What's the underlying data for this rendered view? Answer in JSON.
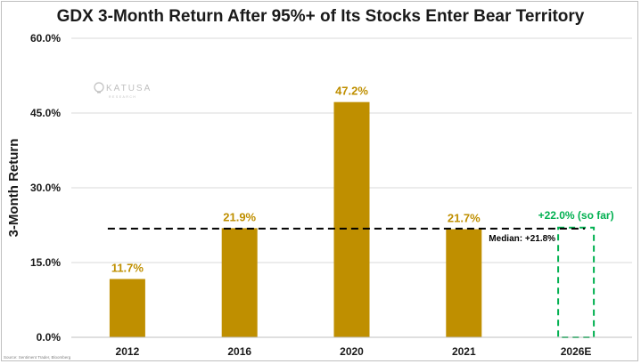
{
  "chart_data": {
    "type": "bar",
    "title": "GDX 3-Month Return After 95%+ of Its Stocks Enter Bear Territory",
    "ylabel": "3-Month Return",
    "xlabel": "",
    "categories": [
      "2012",
      "2016",
      "2020",
      "2021",
      "2026E"
    ],
    "values": [
      11.7,
      21.9,
      47.2,
      21.7,
      null
    ],
    "data_labels": [
      "11.7%",
      "21.9%",
      "47.2%",
      "21.7%",
      ""
    ],
    "ylim": [
      0,
      60
    ],
    "yticks": [
      0,
      15,
      30,
      45,
      60
    ],
    "ytick_labels": [
      "0.0%",
      "15.0%",
      "30.0%",
      "45.0%",
      "60.0%"
    ],
    "grid": "horizontal",
    "bar_color": "#bf8f00",
    "estimate": {
      "category": "2026E",
      "value": 22.0,
      "label": "+22.0% (so far)",
      "style": "dashed outline",
      "color": "#00b050"
    },
    "median": {
      "value": 21.8,
      "label": "Median: +21.8%",
      "style": "dashed line",
      "color": "#000000"
    }
  },
  "watermark": {
    "text": "KATUSA",
    "subtext": "RESEARCH"
  },
  "source_note": "Source: Sentiment Trader, Bloomberg",
  "colors": {
    "bar": "#bf8f00",
    "label": "#bf8f00",
    "estimate": "#00b050",
    "gridline": "#d9d9d9",
    "text": "#1a1a1a"
  }
}
